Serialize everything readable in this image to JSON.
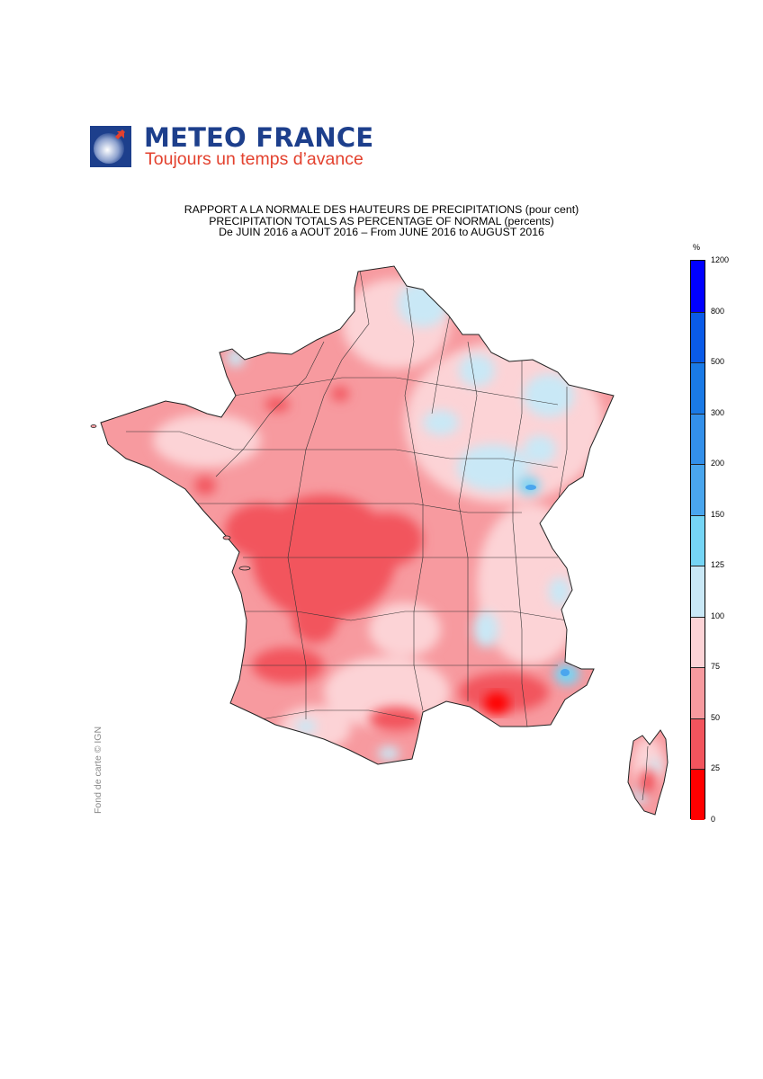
{
  "header": {
    "brand_name": "METEO FRANCE",
    "brand_tagline": "Toujours un temps d’avance"
  },
  "titles": {
    "line1": "RAPPORT A LA NORMALE DES HAUTEURS DE PRECIPITATIONS (pour cent)",
    "line2": "PRECIPITATION TOTALS AS PERCENTAGE OF NORMAL (percents)",
    "line3": "De JUIN 2016 a AOUT 2016 – From JUNE 2016 to AUGUST 2016"
  },
  "map": {
    "region": "France",
    "inset": "Corse",
    "credit": "Fond de carte © IGN"
  },
  "legend": {
    "unit": "%",
    "thresholds": [
      0,
      25,
      50,
      75,
      100,
      125,
      150,
      200,
      300,
      500,
      800,
      1200
    ],
    "labels": [
      "1200",
      "800",
      "500",
      "300",
      "200",
      "150",
      "125",
      "100",
      "75",
      "50",
      "25",
      "0"
    ],
    "colors_top_to_bottom": [
      "#0000ff",
      "#0a5be8",
      "#1a7ae6",
      "#3390ea",
      "#4aa6ee",
      "#75d5f5",
      "#c9e8f6",
      "#fcd3d6",
      "#f79a9f",
      "#f2545d",
      "#ff0000"
    ],
    "palette": {
      "very_dry": "#ff0000",
      "dry": "#f2545d",
      "below_normal": "#f79a9f",
      "near_normal": "#fcd3d6",
      "above_normal": "#c9e8f6",
      "wet": "#75d5f5",
      "very_wet": "#4aa6ee"
    }
  }
}
